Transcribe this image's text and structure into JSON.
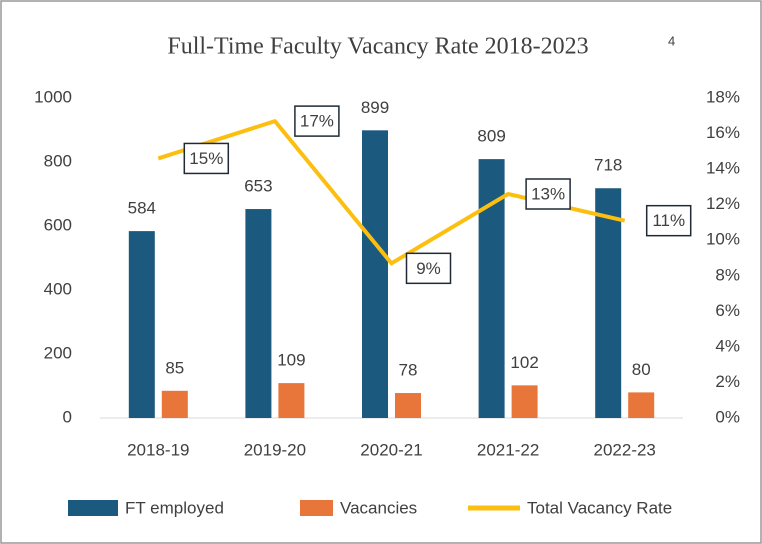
{
  "chart_data": {
    "type": "bar-line",
    "title": "Full-Time Faculty Vacancy Rate 2018-2023",
    "title_note": "4",
    "categories": [
      "2018-19",
      "2019-20",
      "2020-21",
      "2021-22",
      "2022-23"
    ],
    "series": [
      {
        "name": "FT employed",
        "type": "bar",
        "color": "#1b5a7e",
        "values": [
          584,
          653,
          899,
          809,
          718
        ]
      },
      {
        "name": "Vacancies",
        "type": "bar",
        "color": "#e8753a",
        "values": [
          85,
          109,
          78,
          102,
          80
        ]
      },
      {
        "name": "Total Vacancy Rate",
        "type": "line",
        "axis": "y2",
        "color": "#fdbf0f",
        "values": [
          14.6,
          16.7,
          8.7,
          12.6,
          11.1
        ],
        "value_labels": [
          "15%",
          "17%",
          "9%",
          "13%",
          "11%"
        ]
      }
    ],
    "ylim": [
      0,
      1000
    ],
    "yticks": [
      0,
      200,
      400,
      600,
      800,
      1000
    ],
    "y2lim": [
      0,
      18
    ],
    "y2ticks": [
      {
        "value": 0,
        "label": "0%"
      },
      {
        "value": 2,
        "label": "2%"
      },
      {
        "value": 4,
        "label": "4%"
      },
      {
        "value": 6,
        "label": "6%"
      },
      {
        "value": 8,
        "label": "8%"
      },
      {
        "value": 10,
        "label": "10%"
      },
      {
        "value": 12,
        "label": "12%"
      },
      {
        "value": 14,
        "label": "14%"
      },
      {
        "value": 16,
        "label": "16%"
      },
      {
        "value": 18,
        "label": "18%"
      }
    ],
    "legend": "bottom"
  }
}
